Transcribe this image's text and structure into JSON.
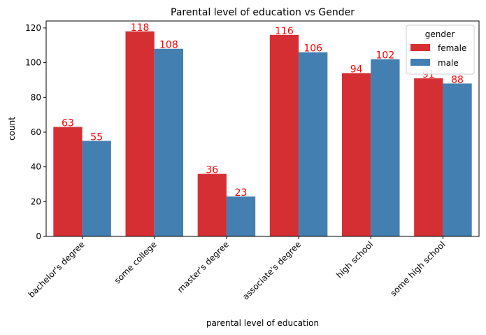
{
  "chart_data": {
    "type": "bar",
    "title": "Parental level of education vs Gender",
    "xlabel": "parental level of education",
    "ylabel": "count",
    "categories": [
      "bachelor's degree",
      "some college",
      "master's degree",
      "associate's degree",
      "high school",
      "some high school"
    ],
    "series": [
      {
        "name": "female",
        "values": [
          63,
          118,
          36,
          116,
          94,
          91
        ],
        "color": "#d62f33"
      },
      {
        "name": "male",
        "values": [
          55,
          108,
          23,
          106,
          102,
          88
        ],
        "color": "#437fb0"
      }
    ],
    "ylim": [
      0,
      124
    ],
    "yticks": [
      0,
      20,
      40,
      60,
      80,
      100,
      120
    ],
    "legend": {
      "title": "gender",
      "position": "top-right"
    },
    "data_label_color": "#ff0000",
    "grid": false
  }
}
